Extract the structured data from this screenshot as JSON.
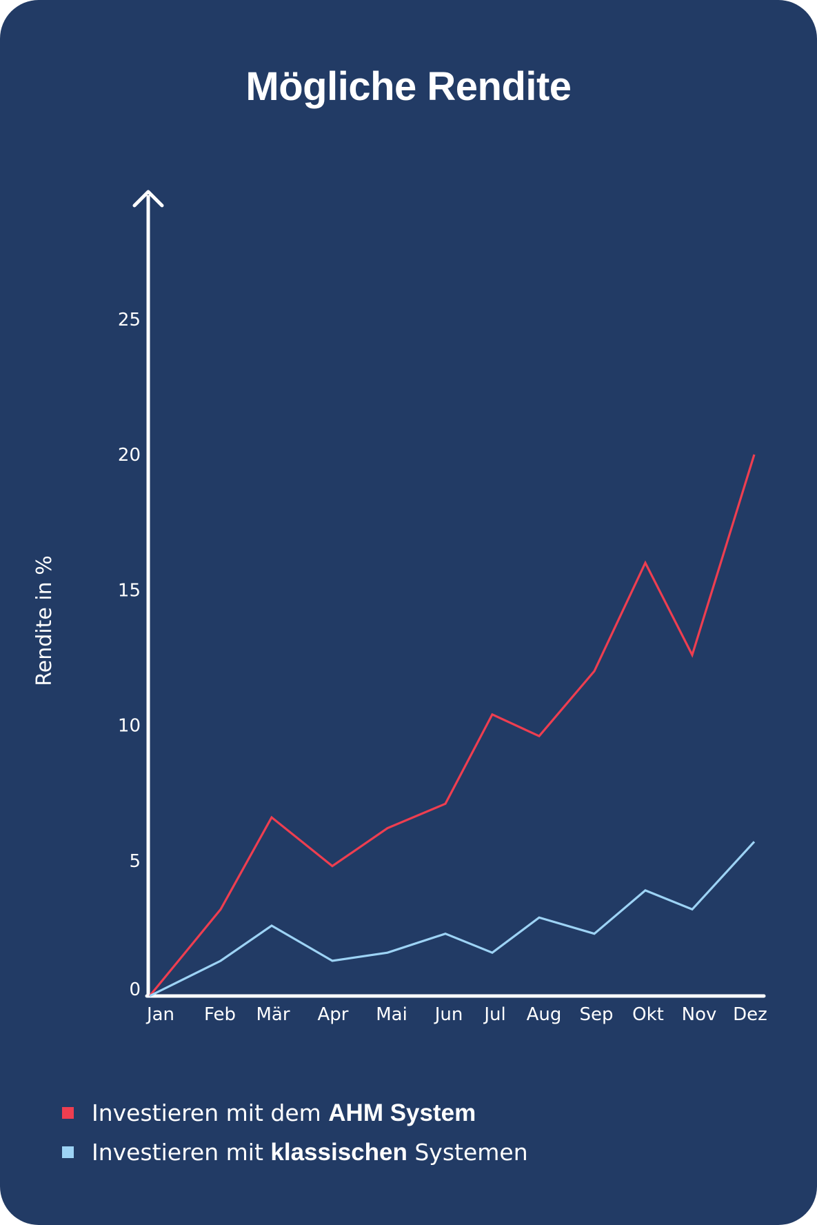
{
  "chart_data": {
    "type": "line",
    "title": "Mögliche Rendite",
    "ylabel": "Rendite in %",
    "xlabel": "",
    "categories": [
      "Jan",
      "Feb",
      "Mär",
      "Apr",
      "Mai",
      "Jun",
      "Jul",
      "Aug",
      "Sep",
      "Okt",
      "Nov",
      "Dez"
    ],
    "yticks": [
      "0",
      "5",
      "10",
      "15",
      "20",
      "25"
    ],
    "ylim": [
      0,
      30
    ],
    "grid": false,
    "legend_position": "bottom-left",
    "series": [
      {
        "color": "#ee3e50",
        "values": [
          0,
          3.2,
          6.6,
          4.8,
          6.2,
          7.1,
          10.4,
          9.6,
          12.0,
          16.0,
          12.6,
          20.0
        ],
        "legend": {
          "prefix": "Investieren mit dem ",
          "bold": "AHM System",
          "suffix": ""
        }
      },
      {
        "color": "#9dd3f5",
        "values": [
          0,
          1.3,
          2.6,
          1.3,
          1.6,
          2.3,
          1.6,
          2.9,
          2.3,
          3.9,
          3.2,
          5.7
        ],
        "legend": {
          "prefix": "Investieren mit ",
          "bold": "klassischen",
          "suffix": " Systemen"
        }
      }
    ]
  },
  "colors": {
    "background": "#223b65",
    "axis": "#ffffff",
    "text": "#ffffff"
  }
}
